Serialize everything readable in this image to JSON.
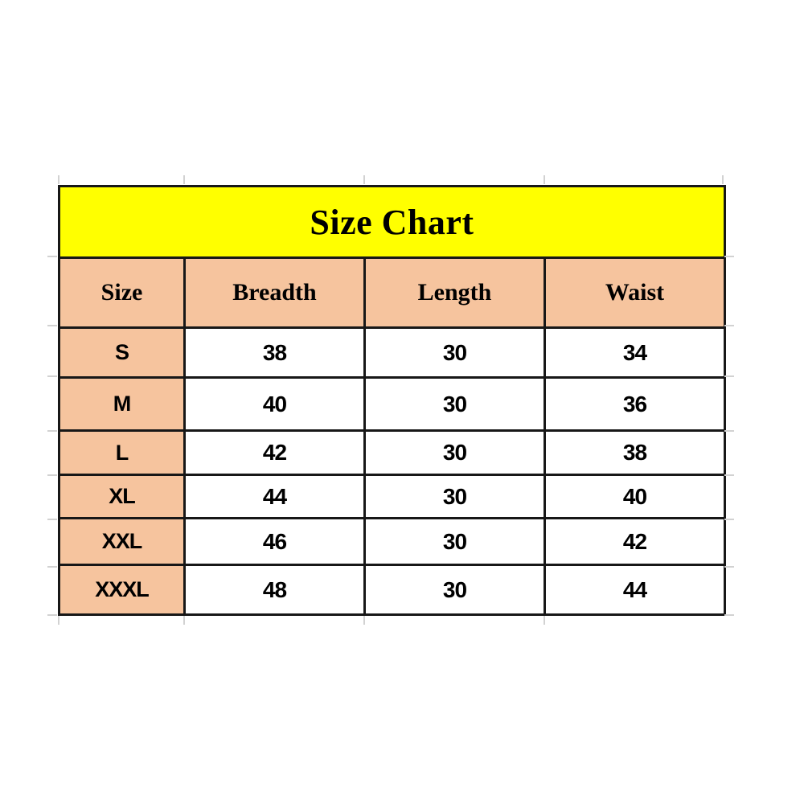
{
  "table": {
    "title": "Size Chart"
  },
  "chart_data": {
    "type": "table",
    "title": "Size Chart",
    "columns": [
      "Size",
      "Breadth",
      "Length",
      "Waist"
    ],
    "rows": [
      [
        "S",
        "38",
        "30",
        "34"
      ],
      [
        "M",
        "40",
        "30",
        "36"
      ],
      [
        "L",
        "42",
        "30",
        "38"
      ],
      [
        "XL",
        "44",
        "30",
        "40"
      ],
      [
        "XXL",
        "46",
        "30",
        "42"
      ],
      [
        "XXXL",
        "48",
        "30",
        "44"
      ]
    ]
  },
  "colors": {
    "title_bg": "#FFFF00",
    "header_bg": "#F6C49E",
    "border": "#171717",
    "text": "#000000",
    "gridline_stub": "#D2D2D2",
    "page_bg": "#FFFFFF"
  }
}
